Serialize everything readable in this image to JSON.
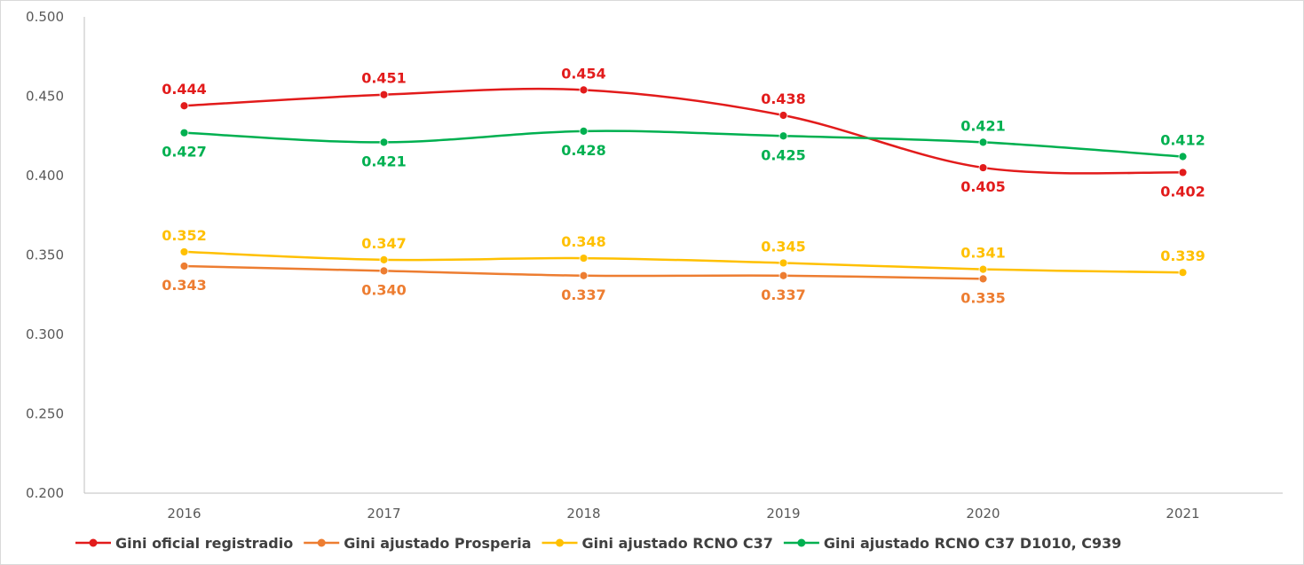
{
  "chart_data": {
    "type": "line",
    "title": "",
    "xlabel": "",
    "ylabel": "",
    "categories": [
      "2016",
      "2017",
      "2018",
      "2019",
      "2020",
      "2021"
    ],
    "ylim": [
      0.2,
      0.5
    ],
    "yticks": [
      "0.200",
      "0.250",
      "0.300",
      "0.350",
      "0.400",
      "0.450",
      "0.500"
    ],
    "grid": false,
    "legend_position": "bottom",
    "series": [
      {
        "name": "Gini oficial registradio",
        "color": "#e21b1b",
        "values": [
          0.444,
          0.451,
          0.454,
          0.438,
          0.405,
          0.402
        ],
        "labels": [
          "0.444",
          "0.451",
          "0.454",
          "0.438",
          "0.405",
          "0.402"
        ],
        "label_side": [
          "above",
          "above",
          "above",
          "above",
          "below",
          "below"
        ]
      },
      {
        "name": "Gini ajustado Prosperia",
        "color": "#ed7d31",
        "values": [
          0.343,
          0.34,
          0.337,
          0.337,
          0.335,
          null
        ],
        "labels": [
          "0.343",
          "0.340",
          "0.337",
          "0.337",
          "0.335",
          ""
        ],
        "label_side": [
          "below",
          "below",
          "below",
          "below",
          "below",
          "below"
        ]
      },
      {
        "name": "Gini ajustado RCNO C37",
        "color": "#ffc000",
        "values": [
          0.352,
          0.347,
          0.348,
          0.345,
          0.341,
          0.339
        ],
        "labels": [
          "0.352",
          "0.347",
          "0.348",
          "0.345",
          "0.341",
          "0.339"
        ],
        "label_side": [
          "above",
          "above",
          "above",
          "above",
          "above",
          "above"
        ]
      },
      {
        "name": "Gini ajustado RCNO C37 D1010, C939",
        "color": "#00b050",
        "values": [
          0.427,
          0.421,
          0.428,
          0.425,
          0.421,
          0.412
        ],
        "labels": [
          "0.427",
          "0.421",
          "0.428",
          "0.425",
          "0.421",
          "0.412"
        ],
        "label_side": [
          "below",
          "below",
          "below",
          "below",
          "above",
          "above"
        ]
      }
    ]
  }
}
